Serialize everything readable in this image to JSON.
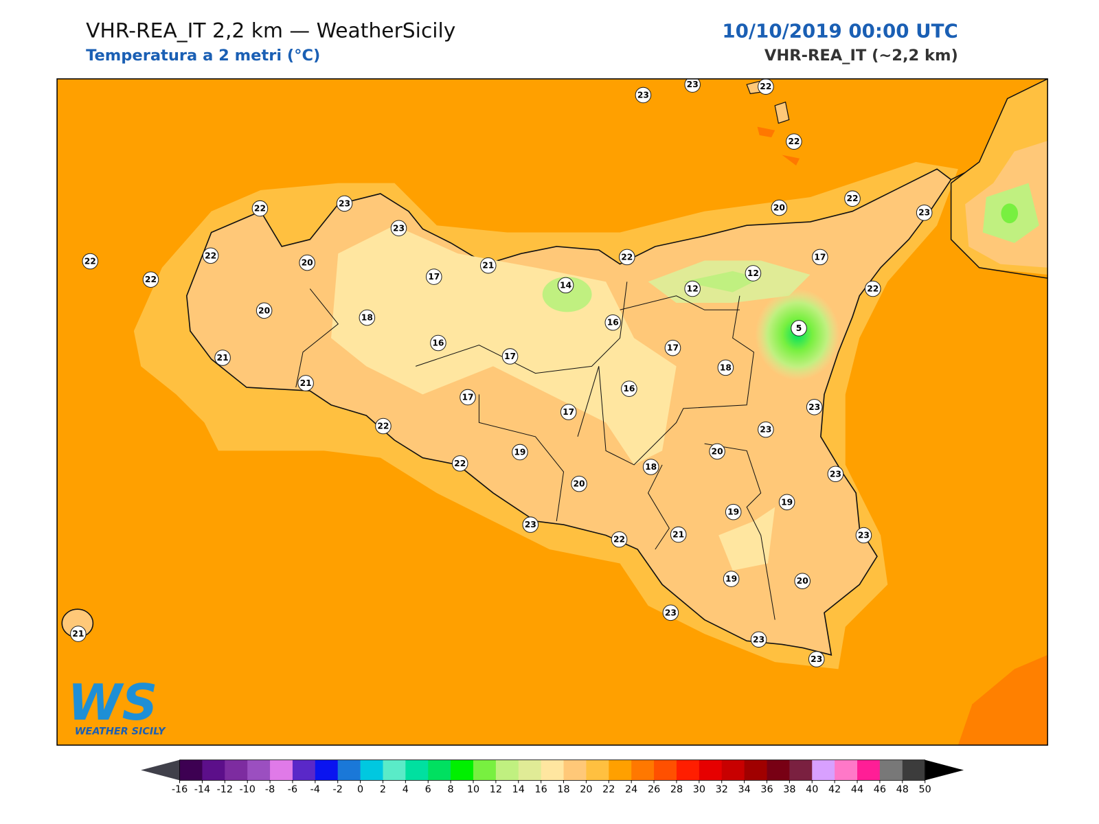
{
  "header": {
    "title": "VHR-REA_IT 2,2 km — WeatherSicily",
    "subtitle": "Temperatura a 2 metri (°C)",
    "valid_time": "10/10/2019 00:00 UTC",
    "model": "VHR-REA_IT (~2,2 km)"
  },
  "stations": [
    23,
    23,
    22,
    22,
    22,
    23,
    23,
    22,
    22,
    20,
    22,
    20,
    17,
    21,
    18,
    14,
    22,
    20,
    22,
    23,
    17,
    12,
    12,
    22,
    5,
    16,
    16,
    17,
    17,
    18,
    21,
    21,
    17,
    17,
    16,
    23,
    23,
    22,
    19,
    20,
    22,
    18,
    20,
    23,
    19,
    19,
    23,
    22,
    21,
    23,
    19,
    20,
    23,
    23,
    23,
    21
  ],
  "colorbar": {
    "ticks": [
      -16,
      -14,
      -12,
      -10,
      -8,
      -6,
      -4,
      -2,
      0,
      2,
      4,
      6,
      8,
      10,
      12,
      14,
      16,
      18,
      20,
      22,
      24,
      26,
      28,
      30,
      32,
      34,
      36,
      38,
      40,
      42,
      44,
      46,
      48,
      50
    ],
    "colors": [
      "#3d0052",
      "#5c0f8a",
      "#7d2ca0",
      "#9b4fc0",
      "#e07ae8",
      "#5a28c8",
      "#0a14f0",
      "#1a78d8",
      "#00c8e0",
      "#5aebc8",
      "#00e0a0",
      "#00e060",
      "#00f000",
      "#78f040",
      "#c0f080",
      "#e0eb96",
      "#ffe6a0",
      "#ffc878",
      "#ffc040",
      "#ffa000",
      "#ff7800",
      "#ff5000",
      "#ff1e00",
      "#e60000",
      "#c80000",
      "#a00000",
      "#780014",
      "#7a2040",
      "#d8a0ff",
      "#ff78c8",
      "#ff1e96",
      "#787878",
      "#3c3c3c"
    ],
    "under_color": "#40404a",
    "over_color": "#000000"
  },
  "logo": {
    "mark": "WS",
    "name": "WEATHER SICILY"
  }
}
